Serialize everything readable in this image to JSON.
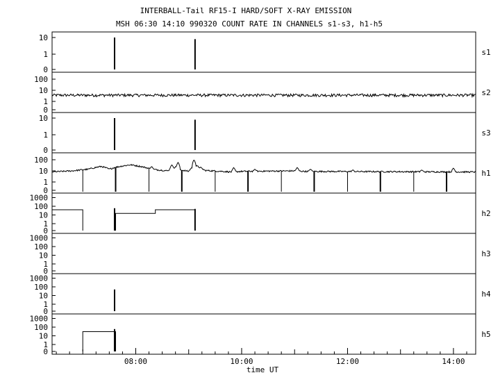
{
  "title": "INTERBALL-Tail RF15-I HARD/SOFT X-RAY EMISSION",
  "subtitle": "MSH 06:30 14:10 990320  COUNT RATE IN CHANNELS s1-s3, h1-h5",
  "chart_data": {
    "type": "line",
    "xlabel": "time UT",
    "xlim_hours": [
      6.42,
      14.42
    ],
    "x_ticks": [
      {
        "value": 8,
        "label": "08:00"
      },
      {
        "value": 10,
        "label": "10:00"
      },
      {
        "value": 12,
        "label": "12:00"
      },
      {
        "value": 14,
        "label": "14:00"
      }
    ],
    "y_scale": "log",
    "grid": false,
    "panels": [
      {
        "name": "s1",
        "y_ticks": [
          "10",
          "1",
          "0"
        ],
        "spikes": [
          {
            "t": 7.6,
            "v": 10
          },
          {
            "t": 9.12,
            "v": 8
          }
        ]
      },
      {
        "name": "s2",
        "y_ticks": [
          "100",
          "10",
          "1",
          "0"
        ],
        "noise_level": 3.5
      },
      {
        "name": "s3",
        "y_ticks": [
          "10",
          "1",
          "0"
        ],
        "spikes": [
          {
            "t": 7.6,
            "v": 10
          },
          {
            "t": 9.12,
            "v": 8
          }
        ]
      },
      {
        "name": "h1",
        "y_ticks": [
          "100",
          "10",
          "1",
          "0"
        ],
        "baseline": 8,
        "profile": [
          [
            6.42,
            8
          ],
          [
            6.8,
            10
          ],
          [
            7.1,
            14
          ],
          [
            7.35,
            25
          ],
          [
            7.5,
            14
          ],
          [
            7.6,
            20
          ],
          [
            7.9,
            35
          ],
          [
            8.3,
            14
          ],
          [
            8.6,
            10
          ],
          [
            8.75,
            22
          ],
          [
            8.85,
            12
          ],
          [
            9.0,
            9
          ],
          [
            9.12,
            30
          ],
          [
            9.3,
            11
          ],
          [
            9.8,
            8
          ],
          [
            10.0,
            9
          ],
          [
            11.0,
            10
          ],
          [
            11.2,
            9
          ],
          [
            14.42,
            8
          ]
        ],
        "drops": [
          7.0,
          7.62,
          8.25,
          8.87,
          9.5,
          10.12,
          10.75,
          11.37,
          12.0,
          12.62,
          13.25,
          13.87
        ],
        "bumps": [
          {
            "t": 8.3,
            "v": 25
          },
          {
            "t": 8.68,
            "v": 35
          },
          {
            "t": 8.8,
            "v": 60
          },
          {
            "t": 9.1,
            "v": 100
          },
          {
            "t": 9.85,
            "v": 20
          },
          {
            "t": 10.25,
            "v": 14
          },
          {
            "t": 11.05,
            "v": 20
          },
          {
            "t": 11.3,
            "v": 14
          },
          {
            "t": 12.1,
            "v": 12
          },
          {
            "t": 13.4,
            "v": 12
          },
          {
            "t": 14.0,
            "v": 18
          }
        ]
      },
      {
        "name": "h2",
        "y_ticks": [
          "1000",
          "100",
          "10",
          "1",
          "0"
        ],
        "steps": [
          [
            [
              6.42,
              40
            ],
            [
              7.0,
              40
            ],
            [
              7.0,
              0
            ]
          ],
          [
            [
              7.62,
              0
            ],
            [
              7.62,
              15
            ],
            [
              8.37,
              15
            ],
            [
              8.37,
              40
            ],
            [
              9.12,
              40
            ],
            [
              9.12,
              0
            ]
          ]
        ],
        "spikes": [
          {
            "t": 7.6,
            "v": 60
          },
          {
            "t": 9.12,
            "v": 50
          }
        ]
      },
      {
        "name": "h3",
        "y_ticks": [
          "1000",
          "100",
          "10",
          "1",
          "0"
        ]
      },
      {
        "name": "h4",
        "y_ticks": [
          "1000",
          "100",
          "10",
          "1",
          "0"
        ],
        "spikes": [
          {
            "t": 7.6,
            "v": 50
          }
        ]
      },
      {
        "name": "h5",
        "y_ticks": [
          "1000",
          "100",
          "10",
          "1",
          "0"
        ],
        "steps": [
          [
            [
              7.0,
              0
            ],
            [
              7.0,
              30
            ],
            [
              7.62,
              30
            ],
            [
              7.62,
              0
            ]
          ]
        ],
        "spikes": [
          {
            "t": 7.6,
            "v": 60
          }
        ]
      }
    ]
  }
}
